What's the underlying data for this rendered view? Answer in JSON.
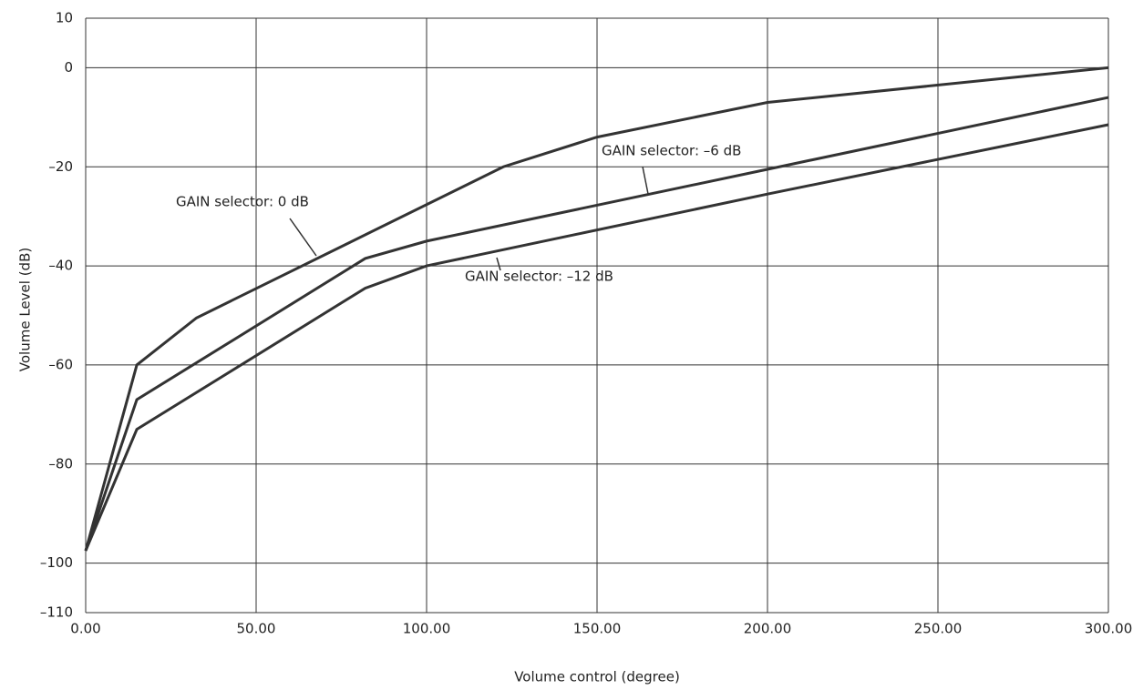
{
  "chart_data": {
    "type": "line",
    "xlabel": "Volume control (degree)",
    "ylabel": "Volume Level (dB)",
    "xlim": [
      0,
      300
    ],
    "ylim": [
      -110,
      10
    ],
    "xticks": [
      {
        "value": 0,
        "label": "0.00"
      },
      {
        "value": 50,
        "label": "50.00"
      },
      {
        "value": 100,
        "label": "100.00"
      },
      {
        "value": 150,
        "label": "150.00"
      },
      {
        "value": 200,
        "label": "200.00"
      },
      {
        "value": 250,
        "label": "250.00"
      },
      {
        "value": 300,
        "label": "300.00"
      }
    ],
    "yticks": [
      10,
      0,
      {
        "value": -20,
        "label": "–20"
      },
      {
        "value": -40,
        "label": "–40"
      },
      {
        "value": -60,
        "label": "–60"
      },
      {
        "value": -80,
        "label": "–80"
      },
      {
        "value": -100,
        "label": "–100"
      },
      {
        "value": -110,
        "label": "–110"
      }
    ],
    "grid": true,
    "series": [
      {
        "name": "GAIN selector: 0 dB",
        "color": "#333333",
        "x": [
          0,
          15,
          32.5,
          122.5,
          150,
          200,
          300
        ],
        "values": [
          -97.5,
          -60,
          -50.5,
          -20,
          -14,
          -7,
          0
        ]
      },
      {
        "name": "GAIN selector: –6 dB",
        "color": "#333333",
        "x": [
          0,
          15,
          82,
          100,
          200,
          300
        ],
        "values": [
          -97.5,
          -67,
          -38.5,
          -35,
          -20.5,
          -6
        ]
      },
      {
        "name": "GAIN selector: –12 dB",
        "color": "#333333",
        "x": [
          0,
          15,
          82,
          100,
          200,
          300
        ],
        "values": [
          -97.5,
          -73,
          -44.5,
          -40,
          -25.5,
          -11.5
        ]
      }
    ]
  }
}
